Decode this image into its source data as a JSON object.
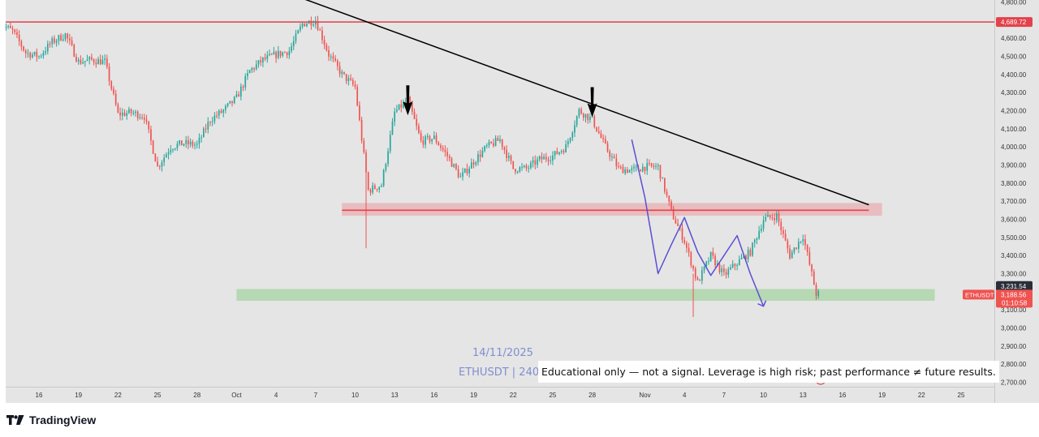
{
  "branding": {
    "name": "TradingView"
  },
  "watermark": {
    "date": "14/11/2025",
    "symbol_text": "ETHUSDT | 240"
  },
  "disclaimer": "Educational only — not a signal. Leverage is high risk; past performance ≠ future results.",
  "colors": {
    "up": "#26a69a",
    "down": "#ef5350",
    "background": "#e5e5e5",
    "resistance": "#e2424a",
    "support_zone": "#a6d3a2",
    "resistance_zone": "#e9a8ab",
    "wave": "#5b4fd3",
    "trendline": "#000000"
  },
  "chart_data": {
    "type": "candlestick",
    "symbol": "ETHUSDT",
    "timeframe": "240",
    "yaxis": {
      "range": [
        2650,
        4820
      ],
      "ticks": [
        4800,
        4700,
        4600,
        4500,
        4400,
        4300,
        4200,
        4100,
        4000,
        3900,
        3800,
        3700,
        3600,
        3500,
        3400,
        3300,
        3200,
        3100,
        3000,
        2900,
        2800,
        2700
      ],
      "tick_labels": [
        "4,800.00",
        "4,700.00",
        "4,600.00",
        "4,500.00",
        "4,400.00",
        "4,300.00",
        "4,200.00",
        "4,100.00",
        "4,000.00",
        "3,900.00",
        "3,800.00",
        "3,700.00",
        "3,600.00",
        "3,500.00",
        "3,400.00",
        "3,300.00",
        "3,200.00",
        "3,100.00",
        "3,000.00",
        "2,900.00",
        "2,800.00",
        "2,700.00"
      ]
    },
    "xaxis": {
      "ticks": [
        {
          "label": "16",
          "date": "2025-09-16"
        },
        {
          "label": "19",
          "date": "2025-09-19"
        },
        {
          "label": "22",
          "date": "2025-09-22"
        },
        {
          "label": "25",
          "date": "2025-09-25"
        },
        {
          "label": "28",
          "date": "2025-09-28"
        },
        {
          "label": "Oct",
          "date": "2025-10-01"
        },
        {
          "label": "4",
          "date": "2025-10-04"
        },
        {
          "label": "7",
          "date": "2025-10-07"
        },
        {
          "label": "10",
          "date": "2025-10-10"
        },
        {
          "label": "13",
          "date": "2025-10-13"
        },
        {
          "label": "16",
          "date": "2025-10-16"
        },
        {
          "label": "19",
          "date": "2025-10-19"
        },
        {
          "label": "22",
          "date": "2025-10-22"
        },
        {
          "label": "25",
          "date": "2025-10-25"
        },
        {
          "label": "28",
          "date": "2025-10-28"
        },
        {
          "label": "Nov",
          "date": "2025-11-01"
        },
        {
          "label": "4",
          "date": "2025-11-04"
        },
        {
          "label": "7",
          "date": "2025-11-07"
        },
        {
          "label": "10",
          "date": "2025-11-10"
        },
        {
          "label": "13",
          "date": "2025-11-13"
        },
        {
          "label": "16",
          "date": "2025-11-16"
        },
        {
          "label": "19",
          "date": "2025-11-19"
        },
        {
          "label": "22",
          "date": "2025-11-22"
        },
        {
          "label": "25",
          "date": "2025-11-25"
        }
      ]
    },
    "price_path": [
      [
        "2025-09-13",
        4680
      ],
      [
        "2025-09-14",
        4640
      ],
      [
        "2025-09-15",
        4520
      ],
      [
        "2025-09-16",
        4500
      ],
      [
        "2025-09-17",
        4580
      ],
      [
        "2025-09-18",
        4620
      ],
      [
        "2025-09-19",
        4470
      ],
      [
        "2025-09-20",
        4480
      ],
      [
        "2025-09-21",
        4470
      ],
      [
        "2025-09-22",
        4180
      ],
      [
        "2025-09-23",
        4190
      ],
      [
        "2025-09-24",
        4170
      ],
      [
        "2025-09-25",
        3890
      ],
      [
        "2025-09-26",
        4000
      ],
      [
        "2025-09-27",
        4020
      ],
      [
        "2025-09-28",
        4010
      ],
      [
        "2025-09-29",
        4150
      ],
      [
        "2025-09-30",
        4200
      ],
      [
        "2025-10-01",
        4270
      ],
      [
        "2025-10-02",
        4420
      ],
      [
        "2025-10-03",
        4480
      ],
      [
        "2025-10-04",
        4510
      ],
      [
        "2025-10-05",
        4530
      ],
      [
        "2025-10-06",
        4680
      ],
      [
        "2025-10-07",
        4700
      ],
      [
        "2025-10-08",
        4510
      ],
      [
        "2025-10-09",
        4400
      ],
      [
        "2025-10-10",
        4330
      ],
      [
        "2025-10-11",
        3760
      ],
      [
        "2025-10-12",
        3790
      ],
      [
        "2025-10-13",
        4190
      ],
      [
        "2025-10-14",
        4260
      ],
      [
        "2025-10-15",
        4030
      ],
      [
        "2025-10-16",
        4050
      ],
      [
        "2025-10-17",
        3950
      ],
      [
        "2025-10-18",
        3830
      ],
      [
        "2025-10-19",
        3920
      ],
      [
        "2025-10-20",
        4000
      ],
      [
        "2025-10-21",
        4040
      ],
      [
        "2025-10-22",
        3880
      ],
      [
        "2025-10-23",
        3880
      ],
      [
        "2025-10-24",
        3930
      ],
      [
        "2025-10-25",
        3950
      ],
      [
        "2025-10-26",
        4000
      ],
      [
        "2025-10-27",
        4200
      ],
      [
        "2025-10-28",
        4150
      ],
      [
        "2025-10-29",
        4000
      ],
      [
        "2025-10-30",
        3880
      ],
      [
        "2025-10-31",
        3870
      ],
      [
        "2025-11-01",
        3890
      ],
      [
        "2025-11-02",
        3890
      ],
      [
        "2025-11-03",
        3640
      ],
      [
        "2025-11-04",
        3480
      ],
      [
        "2025-11-05",
        3250
      ],
      [
        "2025-11-06",
        3400
      ],
      [
        "2025-11-07",
        3290
      ],
      [
        "2025-11-08",
        3360
      ],
      [
        "2025-11-09",
        3420
      ],
      [
        "2025-11-10",
        3600
      ],
      [
        "2025-11-11",
        3620
      ],
      [
        "2025-11-12",
        3400
      ],
      [
        "2025-11-13",
        3510
      ],
      [
        "2025-11-14",
        3188.56
      ]
    ],
    "key_levels": [
      {
        "price": 4689.72,
        "label": "4,689.72",
        "kind": "resistance-line"
      },
      {
        "price": 3650,
        "kind": "support-resistance-line",
        "from": "2025-10-09",
        "to": "2025-11-18"
      }
    ],
    "zones": [
      {
        "kind": "resistance-zone",
        "from": "2025-10-09",
        "to": "2025-11-19",
        "low": 3620,
        "high": 3690
      },
      {
        "kind": "support-zone",
        "from": "2025-10-01",
        "to": "2025-11-23",
        "low": 3150,
        "high": 3215
      }
    ],
    "trendline": [
      [
        "2025-10-06",
        4820
      ],
      [
        "2025-11-18",
        3680
      ]
    ],
    "arrows": [
      {
        "date": "2025-10-14",
        "direction": "down",
        "price": 4340
      },
      {
        "date": "2025-10-28",
        "direction": "down",
        "price": 4330
      }
    ],
    "wave_path": [
      [
        "2025-10-31",
        4040
      ],
      [
        "2025-11-01",
        3720
      ],
      [
        "2025-11-02",
        3300
      ],
      [
        "2025-11-03",
        3460
      ],
      [
        "2025-11-04",
        3610
      ],
      [
        "2025-11-05",
        3420
      ],
      [
        "2025-11-06",
        3290
      ],
      [
        "2025-11-07",
        3400
      ],
      [
        "2025-11-08",
        3510
      ],
      [
        "2025-11-09",
        3300
      ],
      [
        "2025-11-10",
        3120
      ]
    ],
    "price_labels": [
      {
        "text": "3,231.54",
        "price": 3231.54,
        "style": "dark"
      },
      {
        "text": "3,188.56",
        "price": 3188.56,
        "style": "red",
        "sub": "01:10:58",
        "symbol_tag": "ETHUSDT"
      }
    ],
    "last_price": 3188.56,
    "countdown": "01:10:58"
  }
}
